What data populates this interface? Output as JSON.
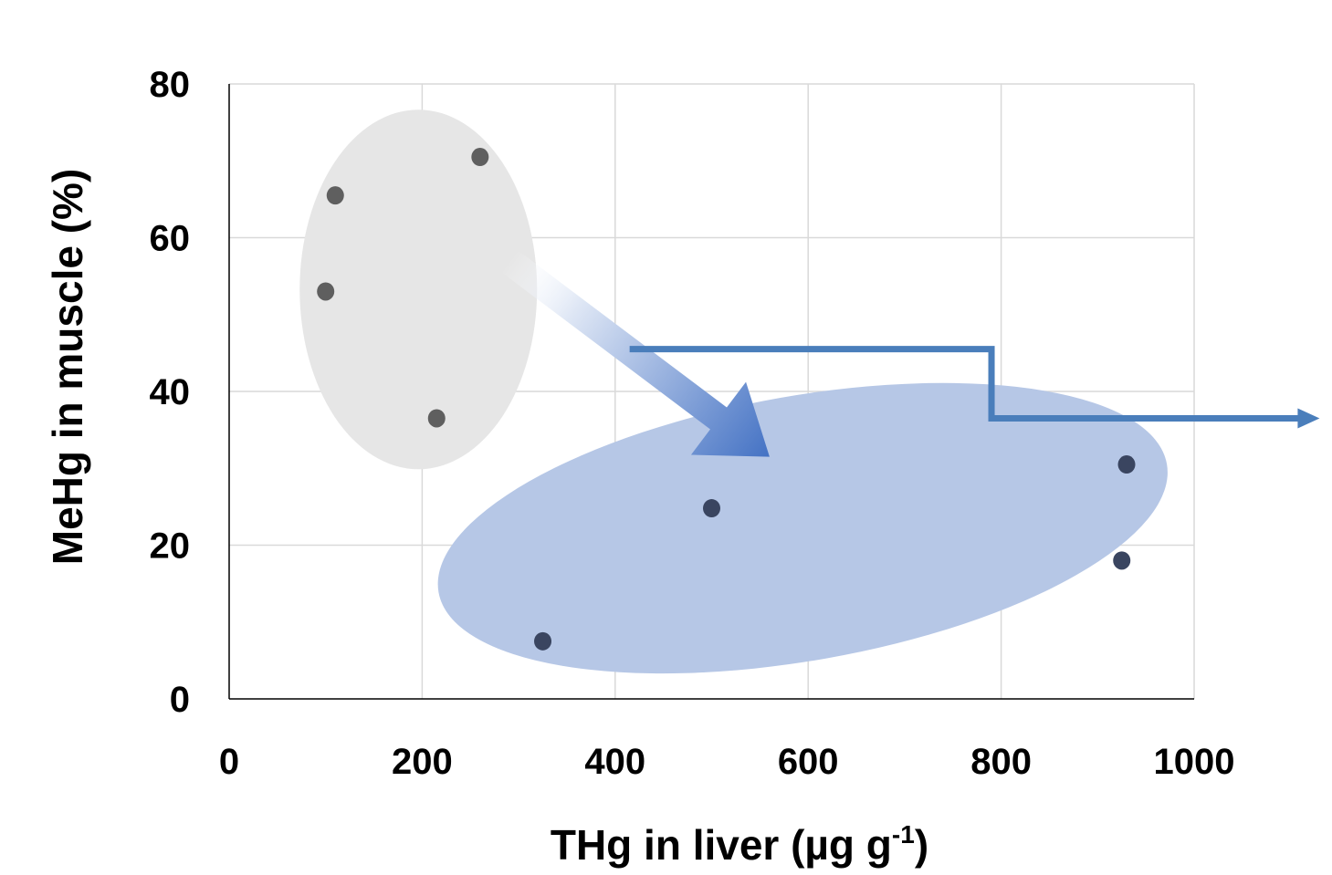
{
  "chart_data": {
    "type": "scatter",
    "title": "",
    "xlabel": "THg in liver (µg g",
    "xlabel_superscript": "-1",
    "xlabel_suffix": ")",
    "ylabel": "MeHg in muscle (%)",
    "xlim": [
      0,
      1000
    ],
    "ylim": [
      0,
      80
    ],
    "x_ticks": [
      0,
      200,
      400,
      600,
      800,
      1000
    ],
    "y_ticks": [
      0,
      20,
      40,
      60,
      80
    ],
    "x_tick_labels": [
      "0",
      "200",
      "400",
      "600",
      "800",
      "1000"
    ],
    "y_tick_labels": [
      "0",
      "20",
      "40",
      "60",
      "80"
    ],
    "grid": true,
    "groups": [
      {
        "points": [
          {
            "x": 110,
            "y": 65.5
          },
          {
            "x": 100,
            "y": 53
          },
          {
            "x": 260,
            "y": 70.5
          },
          {
            "x": 215,
            "y": 36.5
          }
        ],
        "marker_color": "#5f5f5f",
        "ellipse_color": "#e6e6e6"
      },
      {
        "points": [
          {
            "x": 325,
            "y": 7.5
          },
          {
            "x": 500,
            "y": 24.8
          },
          {
            "x": 930,
            "y": 30.5
          },
          {
            "x": 925,
            "y": 18
          }
        ],
        "marker_color": "#3a4560",
        "ellipse_color": "#b6c7e6"
      }
    ],
    "annotations": [
      {
        "kind": "gradient-arrow",
        "from": {
          "x": 290,
          "y": 57
        },
        "to": {
          "x": 560,
          "y": 31.5
        },
        "color": "#4472c4"
      },
      {
        "kind": "step-arrow",
        "points": [
          {
            "x": 415,
            "y": 45.5
          },
          {
            "x": 790,
            "y": 45.5
          },
          {
            "x": 790,
            "y": 36.5
          },
          {
            "x": 1130,
            "y": 36.5
          }
        ],
        "color": "#4a7ebb"
      }
    ],
    "colors": {
      "grid": "#d9d9d9",
      "axis": "#000000",
      "step_arrow": "#4a7ebb",
      "gradient_arrow_end": "#4472c4"
    }
  }
}
